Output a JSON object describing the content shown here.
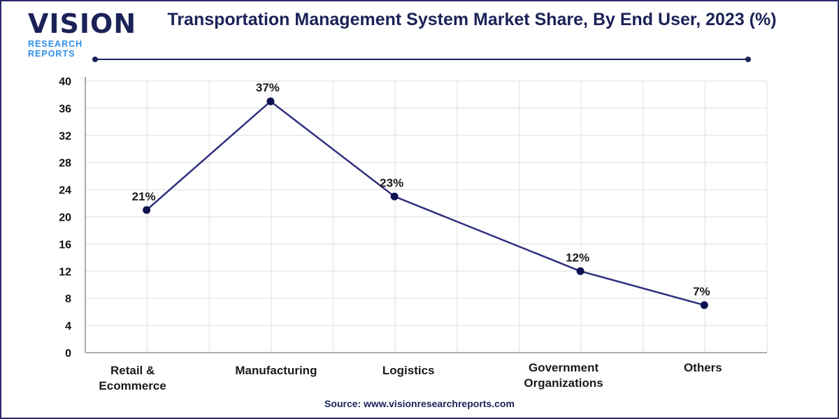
{
  "logo": {
    "main": "VISION",
    "sub": "RESEARCH REPORTS"
  },
  "title": "Transportation Management System Market Share, By End User, 2023 (%)",
  "source": "Source: www.visionresearchreports.com",
  "colors": {
    "line": "#2e2e7e",
    "marker": "#0d1150",
    "title": "#1b2257",
    "logo_accent": "#2c8ee8"
  },
  "chart_data": {
    "type": "line",
    "title": "Transportation Management System Market Share, By End User, 2023 (%)",
    "categories": [
      "Retail &\nEcommerce",
      "Manufacturing",
      "Logistics",
      "Government\nOrganizations",
      "Others"
    ],
    "values": [
      21,
      37,
      23,
      12,
      7
    ],
    "data_labels": [
      "21%",
      "37%",
      "23%",
      "12%",
      "7%"
    ],
    "ylim": [
      0,
      40
    ],
    "yticks": [
      0,
      4,
      8,
      12,
      16,
      20,
      24,
      28,
      32,
      36,
      40
    ],
    "grid": true,
    "xlabel": "",
    "ylabel": ""
  }
}
